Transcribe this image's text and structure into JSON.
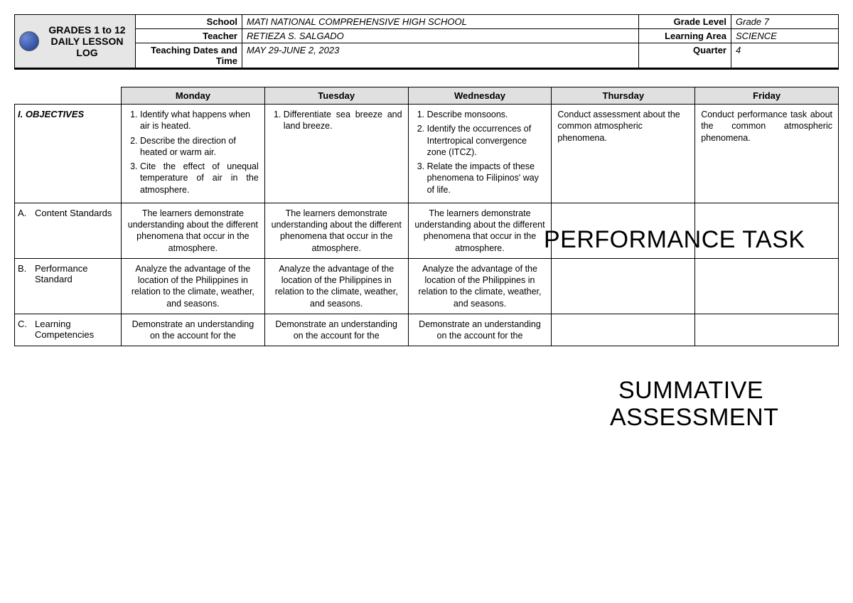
{
  "header": {
    "title": "GRADES 1 to 12 DAILY LESSON LOG",
    "rows": [
      {
        "label1": "School",
        "val1": "MATI NATIONAL COMPREHENSIVE HIGH SCHOOL",
        "label2": "Grade Level",
        "val2": "Grade 7"
      },
      {
        "label1": "Teacher",
        "val1": "RETIEZA S. SALGADO",
        "label2": "Learning Area",
        "val2": "SCIENCE"
      },
      {
        "label1": "Teaching Dates and Time",
        "val1": "MAY 29-JUNE 2, 2023",
        "label2": "Quarter",
        "val2": "4"
      }
    ]
  },
  "days": [
    "Monday",
    "Tuesday",
    "Wednesday",
    "Thursday",
    "Friday"
  ],
  "rows": {
    "objectives": {
      "label": "I. OBJECTIVES",
      "mon": [
        "Identify what happens when air is heated.",
        "Describe the direction of heated or warm air.",
        "Cite the effect of unequal temperature of air in the atmosphere."
      ],
      "tue": [
        "Differentiate sea breeze and land breeze."
      ],
      "wed": [
        "Describe monsoons.",
        "Identify the occurrences of Intertropical convergence zone (ITCZ).",
        "Relate the impacts of these phenomena to Filipinos' way of life."
      ],
      "thu": "Conduct assessment about the common atmospheric phenomena.",
      "fri": "Conduct performance task about the common atmospheric phenomena."
    },
    "content_std": {
      "label_letter": "A.",
      "label_text": "Content Standards",
      "mon": "The learners demonstrate understanding about the different phenomena that occur in the atmosphere.",
      "tue": "The learners demonstrate understanding about the different phenomena that occur in the atmosphere.",
      "wed": "The learners demonstrate understanding about the different phenomena that occur in the atmosphere."
    },
    "perf_std": {
      "label_letter": "B.",
      "label_text": "Performance Standard",
      "mon": "Analyze the advantage of the location of the Philippines in relation to the climate, weather, and seasons.",
      "tue": "Analyze the advantage of the location of the Philippines in relation to the climate, weather, and seasons.",
      "wed": "Analyze the advantage of the location of the Philippines in relation to the climate, weather, and seasons."
    },
    "learn_comp": {
      "label_letter": "C.",
      "label_text": "Learning Competencies",
      "mon": "Demonstrate an understanding on the account for the",
      "tue": "Demonstrate an understanding on the account for the",
      "wed": "Demonstrate an understanding on the account for the"
    }
  },
  "overlay": {
    "perf_task": "PERFORMANCE TASK",
    "summ1": "SUMMATIVE",
    "summ2": "ASSESSMENT"
  }
}
